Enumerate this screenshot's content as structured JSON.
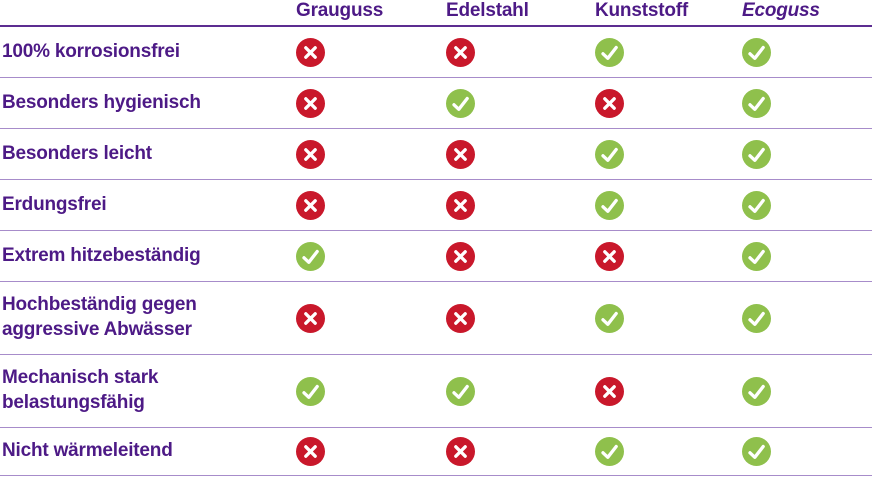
{
  "colors": {
    "text_purple": "#4d1a86",
    "header_rule_purple": "#5c2d91",
    "row_rule_light_purple": "#a78cca",
    "cross_red": "#c9182b",
    "check_green": "#8fc04c",
    "glyph_white": "#ffffff"
  },
  "icons": {
    "yes": "check-icon",
    "no": "cross-icon"
  },
  "chart_data": {
    "type": "table",
    "title": "",
    "legend_position": "none",
    "grid": "horizontal-rules",
    "columns": [
      {
        "label": "Grauguss",
        "italic": false
      },
      {
        "label": "Edelstahl",
        "italic": false
      },
      {
        "label": "Kunststoff",
        "italic": false
      },
      {
        "label": "Ecoguss",
        "italic": true
      }
    ],
    "rows": [
      {
        "label": "100% korrosionsfrei",
        "label_lines": [
          "100% korrosionsfrei"
        ],
        "values": [
          "no",
          "no",
          "yes",
          "yes"
        ]
      },
      {
        "label": "Besonders hygienisch",
        "label_lines": [
          "Besonders hygienisch"
        ],
        "values": [
          "no",
          "yes",
          "no",
          "yes"
        ]
      },
      {
        "label": "Besonders leicht",
        "label_lines": [
          "Besonders leicht"
        ],
        "values": [
          "no",
          "no",
          "yes",
          "yes"
        ]
      },
      {
        "label": "Erdungsfrei",
        "label_lines": [
          "Erdungsfrei"
        ],
        "values": [
          "no",
          "no",
          "yes",
          "yes"
        ]
      },
      {
        "label": "Extrem hitzebeständig",
        "label_lines": [
          "Extrem hitzebeständig"
        ],
        "values": [
          "yes",
          "no",
          "no",
          "yes"
        ]
      },
      {
        "label": "Hochbeständig gegen aggressive Abwässer",
        "label_lines": [
          "Hochbeständig gegen",
          "aggressive Abwässer"
        ],
        "values": [
          "no",
          "no",
          "yes",
          "yes"
        ]
      },
      {
        "label": "Mechanisch stark belastungsfähig",
        "label_lines": [
          "Mechanisch stark",
          "belastungsfähig"
        ],
        "values": [
          "yes",
          "yes",
          "no",
          "yes"
        ]
      },
      {
        "label": "Nicht wärmeleitend",
        "label_lines": [
          "Nicht wärmeleitend"
        ],
        "values": [
          "no",
          "no",
          "yes",
          "yes"
        ]
      }
    ]
  }
}
